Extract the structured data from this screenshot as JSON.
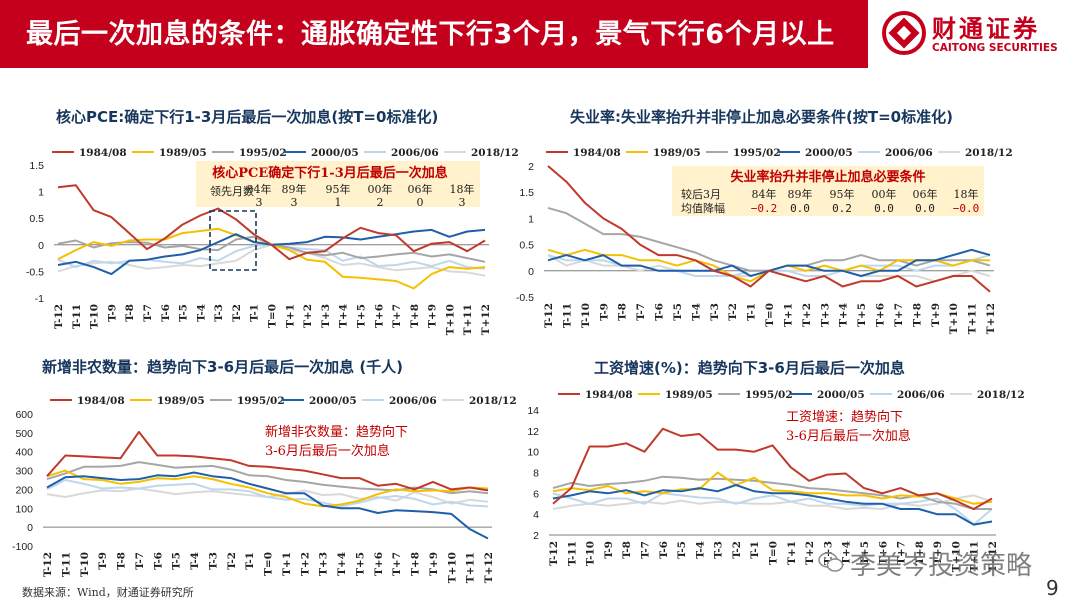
{
  "header": {
    "title": "最后一次加息的条件：通胀确定性下行3个月，景气下行6个月以上"
  },
  "logo": {
    "cn": "财通证券",
    "en": "CAITONG SECURITIES"
  },
  "footer": {
    "source": "数据来源：Wind，财通证券研究所",
    "watermark": "李美岑投资策略",
    "page": "9"
  },
  "colors": {
    "brand": "#c5001c",
    "title": "#17365d",
    "s1984": "#c0392b",
    "s1989": "#f5c000",
    "s1995": "#a6a6a6",
    "s2000": "#1f5fa8",
    "s2006": "#bdd7ee",
    "s2018": "#d9d9d9",
    "annotation": "#c00000",
    "boxFill": "#fff2cc"
  },
  "legend": [
    "1984/08",
    "1989/05",
    "1995/02",
    "2000/05",
    "2006/06",
    "2018/12"
  ],
  "chart_data": [
    {
      "id": "pce",
      "type": "line",
      "title": "核心PCE:确定下行1-3月后最后一次加息(按T=0标准化)",
      "x": [
        "T-12",
        "T-11",
        "T-10",
        "T-9",
        "T-8",
        "T-7",
        "T-6",
        "T-5",
        "T-4",
        "T-3",
        "T-2",
        "T-1",
        "T=0",
        "T+1",
        "T+2",
        "T+3",
        "T+4",
        "T+5",
        "T+6",
        "T+7",
        "T+8",
        "T+9",
        "T+10",
        "T+11",
        "T+12"
      ],
      "ylim": [
        -1,
        1.5
      ],
      "yticks": [
        -1,
        -0.5,
        0,
        0.5,
        1,
        1.5
      ],
      "series": [
        {
          "name": "1984/08",
          "values": [
            1.08,
            1.12,
            0.65,
            0.52,
            0.22,
            -0.08,
            0.12,
            0.38,
            0.55,
            0.68,
            0.48,
            0.2,
            0,
            -0.27,
            -0.15,
            -0.12,
            0.12,
            0.32,
            0.22,
            0.18,
            -0.12,
            0.02,
            0.05,
            -0.12,
            0.08
          ]
        },
        {
          "name": "1989/05",
          "values": [
            -0.27,
            -0.1,
            0.05,
            -0.02,
            0.08,
            0.1,
            0.1,
            0.22,
            0.26,
            0.3,
            0.18,
            0.06,
            0,
            -0.1,
            -0.28,
            -0.32,
            -0.6,
            -0.62,
            -0.65,
            -0.68,
            -0.82,
            -0.55,
            -0.42,
            -0.45,
            -0.42
          ]
        },
        {
          "name": "1995/02",
          "values": [
            0.02,
            0.08,
            -0.05,
            0.03,
            0.05,
            0.04,
            -0.05,
            -0.02,
            -0.08,
            -0.1,
            0.1,
            0.15,
            0,
            -0.05,
            -0.15,
            -0.2,
            -0.15,
            -0.25,
            -0.22,
            -0.18,
            -0.15,
            -0.22,
            -0.18,
            -0.25,
            -0.32
          ]
        },
        {
          "name": "2000/05",
          "values": [
            -0.38,
            -0.32,
            -0.42,
            -0.55,
            -0.3,
            -0.28,
            -0.22,
            -0.18,
            -0.1,
            0.05,
            0.2,
            0.05,
            0,
            0.02,
            0.05,
            0.15,
            0.14,
            0.1,
            0.15,
            0.2,
            0.25,
            0.28,
            0.15,
            0.25,
            0.28
          ]
        },
        {
          "name": "2006/06",
          "values": [
            -0.28,
            -0.42,
            -0.3,
            -0.35,
            -0.3,
            -0.28,
            -0.32,
            -0.35,
            -0.25,
            -0.3,
            -0.12,
            -0.02,
            0,
            -0.05,
            -0.08,
            -0.1,
            -0.3,
            -0.22,
            -0.4,
            -0.38,
            -0.32,
            -0.4,
            -0.3,
            -0.42,
            -0.45
          ]
        },
        {
          "name": "2018/12",
          "values": [
            -0.5,
            -0.4,
            -0.35,
            -0.32,
            -0.38,
            -0.45,
            -0.42,
            -0.38,
            -0.4,
            -0.35,
            -0.3,
            -0.1,
            0,
            -0.1,
            -0.15,
            -0.25,
            -0.38,
            -0.35,
            -0.42,
            -0.48,
            -0.45,
            -0.42,
            -0.5,
            -0.52,
            -0.58
          ]
        }
      ],
      "table": {
        "title": "核心PCE确定下行1-3月后最后一次加息",
        "row_label": "领先月数",
        "headers": [
          "84年",
          "89年",
          "95年",
          "00年",
          "06年",
          "18年"
        ],
        "values": [
          "3",
          "3",
          "1",
          "2",
          "0",
          "3"
        ]
      }
    },
    {
      "id": "unemp",
      "type": "line",
      "title": "失业率:失业率抬升并非停止加息必要条件(按T=0标准化)",
      "x": [
        "T-12",
        "T-11",
        "T-10",
        "T-9",
        "T-8",
        "T-7",
        "T-6",
        "T-5",
        "T-4",
        "T-3",
        "T-2",
        "T-1",
        "T=0",
        "T+1",
        "T+2",
        "T+3",
        "T+4",
        "T+5",
        "T+6",
        "T+7",
        "T+8",
        "T+9",
        "T+10",
        "T+11",
        "T+12"
      ],
      "ylim": [
        -0.5,
        2
      ],
      "yticks": [
        -0.5,
        0,
        0.5,
        1,
        1.5,
        2
      ],
      "series": [
        {
          "name": "1984/08",
          "values": [
            2.0,
            1.7,
            1.3,
            1.0,
            0.8,
            0.5,
            0.3,
            0.3,
            0.2,
            0.0,
            -0.1,
            -0.3,
            0,
            -0.1,
            -0.2,
            -0.1,
            -0.3,
            -0.2,
            -0.2,
            -0.1,
            -0.3,
            -0.2,
            -0.1,
            -0.1,
            -0.4
          ]
        },
        {
          "name": "1989/05",
          "values": [
            0.4,
            0.3,
            0.4,
            0.3,
            0.3,
            0.2,
            0.2,
            0.1,
            0.2,
            0.1,
            -0.1,
            -0.2,
            0,
            0.1,
            0.0,
            0.1,
            0.0,
            0.1,
            0.0,
            0.2,
            0.2,
            0.2,
            0.1,
            0.2,
            0.2
          ]
        },
        {
          "name": "1995/02",
          "values": [
            1.2,
            1.1,
            0.9,
            0.7,
            0.7,
            0.65,
            0.55,
            0.45,
            0.35,
            0.2,
            0.1,
            0.0,
            0,
            0.1,
            0.1,
            0.2,
            0.2,
            0.3,
            0.2,
            0.2,
            0.1,
            0.2,
            0.2,
            0.2,
            0.1
          ]
        },
        {
          "name": "2000/05",
          "values": [
            0.2,
            0.3,
            0.2,
            0.3,
            0.1,
            0.1,
            0.0,
            0.0,
            0.0,
            0.0,
            0.1,
            -0.1,
            0,
            0.1,
            0.1,
            0.0,
            0.0,
            -0.1,
            0.0,
            0.0,
            0.2,
            0.2,
            0.3,
            0.4,
            0.3
          ]
        },
        {
          "name": "2006/06",
          "values": [
            0.3,
            0.2,
            0.2,
            0.2,
            0.1,
            0.1,
            0.0,
            0.0,
            -0.1,
            -0.1,
            -0.1,
            0.0,
            0,
            0.0,
            -0.1,
            -0.1,
            0.0,
            0.1,
            0.1,
            0.1,
            0.0,
            0.1,
            0.1,
            0.2,
            0.3
          ]
        },
        {
          "name": "2018/12",
          "values": [
            0.3,
            0.1,
            0.2,
            0.1,
            0.1,
            0.0,
            0.1,
            0.0,
            0.0,
            0.0,
            -0.1,
            -0.1,
            0,
            0.0,
            0.0,
            0.1,
            0.0,
            -0.1,
            -0.1,
            -0.1,
            -0.1,
            -0.2,
            -0.1,
            0.0,
            -0.1
          ]
        }
      ],
      "table": {
        "title": "失业率抬升并非停止加息必要条件",
        "row1_label": "较后3月",
        "row2_label": "均值降幅",
        "headers": [
          "84年",
          "89年",
          "95年",
          "00年",
          "06年",
          "18年"
        ],
        "values": [
          "−0.2",
          "0.0",
          "0.2",
          "0.0",
          "0.0",
          "−0.0"
        ]
      }
    },
    {
      "id": "nfp",
      "type": "line",
      "title": "新增非农数量：趋势向下3-6月后最后一次加息 (千人)",
      "x": [
        "T-12",
        "T-11",
        "T-10",
        "T-9",
        "T-8",
        "T-7",
        "T-6",
        "T-5",
        "T-4",
        "T-3",
        "T-2",
        "T-1",
        "T=0",
        "T+1",
        "T+2",
        "T+3",
        "T+4",
        "T+5",
        "T+6",
        "T+7",
        "T+8",
        "T+9",
        "T+10",
        "T+11",
        "T+12"
      ],
      "ylim": [
        -100,
        600
      ],
      "yticks": [
        -100,
        0,
        100,
        200,
        300,
        400,
        500,
        600
      ],
      "annotation": [
        "新增非农数量：趋势向下",
        "3-6月后最后一次加息"
      ],
      "series": [
        {
          "name": "1984/08",
          "values": [
            270,
            380,
            375,
            370,
            365,
            505,
            380,
            380,
            375,
            365,
            355,
            325,
            320,
            310,
            300,
            280,
            260,
            260,
            220,
            230,
            200,
            240,
            200,
            210,
            195
          ]
        },
        {
          "name": "1989/05",
          "values": [
            270,
            300,
            255,
            250,
            230,
            240,
            260,
            255,
            270,
            255,
            230,
            210,
            180,
            160,
            125,
            110,
            120,
            140,
            175,
            200,
            190,
            195,
            190,
            210,
            205
          ]
        },
        {
          "name": "1995/02",
          "values": [
            255,
            285,
            320,
            320,
            325,
            345,
            330,
            315,
            320,
            325,
            305,
            275,
            270,
            250,
            240,
            225,
            215,
            205,
            200,
            195,
            210,
            200,
            180,
            190,
            180
          ]
        },
        {
          "name": "2000/05",
          "values": [
            210,
            265,
            270,
            260,
            250,
            255,
            275,
            270,
            290,
            270,
            260,
            230,
            205,
            180,
            180,
            115,
            100,
            100,
            75,
            90,
            85,
            80,
            70,
            -10,
            -60
          ]
        },
        {
          "name": "2006/06",
          "values": [
            200,
            250,
            230,
            205,
            210,
            205,
            220,
            225,
            230,
            200,
            200,
            190,
            160,
            145,
            150,
            130,
            110,
            130,
            155,
            165,
            150,
            120,
            135,
            115,
            110
          ]
        },
        {
          "name": "2018/12",
          "values": [
            175,
            160,
            180,
            195,
            190,
            205,
            190,
            175,
            185,
            190,
            180,
            170,
            160,
            175,
            195,
            170,
            175,
            150,
            160,
            140,
            185,
            160,
            125,
            145,
            135
          ]
        }
      ]
    },
    {
      "id": "wage",
      "type": "line",
      "title": "工资增速(%)：趋势向下3-6月后最后一次加息",
      "x": [
        "T-12",
        "T-11",
        "T-10",
        "T-9",
        "T-8",
        "T-7",
        "T-6",
        "T-5",
        "T-4",
        "T-3",
        "T-2",
        "T-1",
        "T=0",
        "T+1",
        "T+2",
        "T+3",
        "T+4",
        "T+5",
        "T+6",
        "T+7",
        "T+8",
        "T+9",
        "T+10",
        "T+11",
        "T+12"
      ],
      "ylim": [
        2,
        14
      ],
      "yticks": [
        2,
        4,
        6,
        8,
        10,
        12,
        14
      ],
      "annotation": [
        "工资增速：趋势向下",
        "3-6月后最后一次加息"
      ],
      "series": [
        {
          "name": "1984/08",
          "values": [
            5.0,
            6.5,
            10.5,
            10.5,
            10.8,
            10.0,
            12.2,
            11.5,
            11.7,
            10.2,
            10.2,
            10.0,
            10.6,
            8.5,
            7.2,
            7.8,
            7.9,
            6.5,
            6.0,
            6.5,
            5.8,
            6.0,
            5.3,
            4.5,
            5.5
          ]
        },
        {
          "name": "1989/05",
          "values": [
            6.2,
            6.5,
            6.3,
            6.7,
            6.0,
            6.2,
            6.0,
            6.4,
            6.4,
            8.0,
            6.8,
            7.5,
            6.3,
            6.2,
            6.0,
            6.0,
            5.8,
            5.8,
            5.5,
            5.8,
            5.7,
            6.0,
            5.5,
            5.0,
            5.2
          ]
        },
        {
          "name": "1995/02",
          "values": [
            6.5,
            7.0,
            6.7,
            6.9,
            7.0,
            7.2,
            7.6,
            7.5,
            7.3,
            7.4,
            7.3,
            7.2,
            7.0,
            6.8,
            6.5,
            6.4,
            6.2,
            6.0,
            5.8,
            5.5,
            5.8,
            5.2,
            5.0,
            4.5,
            4.5
          ]
        },
        {
          "name": "2000/05",
          "values": [
            5.5,
            5.8,
            6.2,
            6.0,
            6.3,
            5.8,
            6.3,
            6.2,
            6.5,
            6.2,
            6.8,
            6.2,
            6.0,
            6.0,
            5.8,
            5.5,
            5.2,
            5.0,
            5.0,
            4.5,
            4.5,
            4.0,
            4.0,
            3.0,
            3.3
          ]
        },
        {
          "name": "2006/06",
          "values": [
            6.0,
            5.5,
            5.0,
            5.5,
            5.5,
            5.0,
            6.0,
            5.8,
            5.6,
            5.5,
            5.0,
            5.5,
            5.8,
            5.2,
            5.5,
            5.0,
            5.0,
            4.8,
            5.0,
            5.0,
            5.2,
            5.5,
            4.5,
            3.0,
            4.5
          ]
        },
        {
          "name": "2018/12",
          "values": [
            4.5,
            4.8,
            5.0,
            4.8,
            5.0,
            5.2,
            5.0,
            5.3,
            5.0,
            5.2,
            5.1,
            5.0,
            5.0,
            5.2,
            4.8,
            4.8,
            4.5,
            4.6,
            4.5,
            5.0,
            4.8,
            5.0,
            5.5,
            5.8,
            5.2
          ]
        }
      ]
    }
  ]
}
